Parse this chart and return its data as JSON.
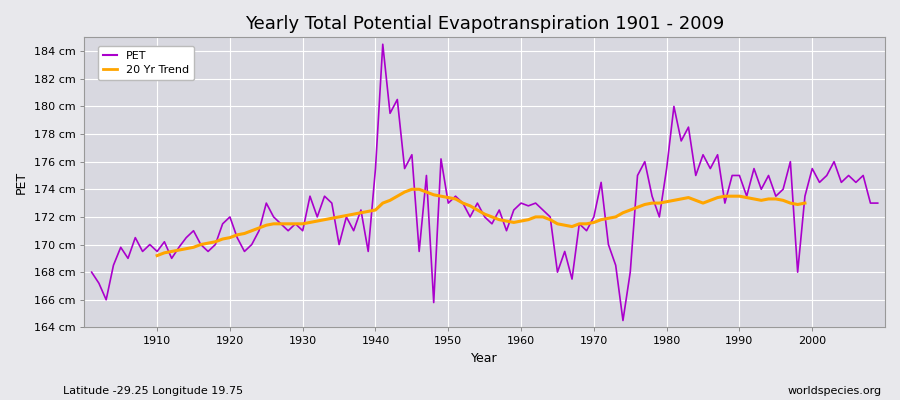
{
  "title": "Yearly Total Potential Evapotranspiration 1901 - 2009",
  "xlabel": "Year",
  "ylabel": "PET",
  "subtitle_left": "Latitude -29.25 Longitude 19.75",
  "subtitle_right": "worldspecies.org",
  "pet_color": "#AA00CC",
  "trend_color": "#FFA500",
  "bg_color": "#E8E8EC",
  "plot_bg_color": "#D8D8E0",
  "grid_color": "#FFFFFF",
  "ylim": [
    164,
    185
  ],
  "ytick_labels": [
    "164 cm",
    "166 cm",
    "168 cm",
    "170 cm",
    "172 cm",
    "174 cm",
    "176 cm",
    "178 cm",
    "180 cm",
    "182 cm",
    "184 cm"
  ],
  "ytick_values": [
    164,
    166,
    168,
    170,
    172,
    174,
    176,
    178,
    180,
    182,
    184
  ],
  "years": [
    1901,
    1902,
    1903,
    1904,
    1905,
    1906,
    1907,
    1908,
    1909,
    1910,
    1911,
    1912,
    1913,
    1914,
    1915,
    1916,
    1917,
    1918,
    1919,
    1920,
    1921,
    1922,
    1923,
    1924,
    1925,
    1926,
    1927,
    1928,
    1929,
    1930,
    1931,
    1932,
    1933,
    1934,
    1935,
    1936,
    1937,
    1938,
    1939,
    1940,
    1941,
    1942,
    1943,
    1944,
    1945,
    1946,
    1947,
    1948,
    1949,
    1950,
    1951,
    1952,
    1953,
    1954,
    1955,
    1956,
    1957,
    1958,
    1959,
    1960,
    1961,
    1962,
    1963,
    1964,
    1965,
    1966,
    1967,
    1968,
    1969,
    1970,
    1971,
    1972,
    1973,
    1974,
    1975,
    1976,
    1977,
    1978,
    1979,
    1980,
    1981,
    1982,
    1983,
    1984,
    1985,
    1986,
    1987,
    1988,
    1989,
    1990,
    1991,
    1992,
    1993,
    1994,
    1995,
    1996,
    1997,
    1998,
    1999,
    2000,
    2001,
    2002,
    2003,
    2004,
    2005,
    2006,
    2007,
    2008,
    2009
  ],
  "pet": [
    168.0,
    167.2,
    166.0,
    168.5,
    169.8,
    169.0,
    170.5,
    169.5,
    170.0,
    169.5,
    170.2,
    169.0,
    169.8,
    170.5,
    171.0,
    170.0,
    169.5,
    170.0,
    171.5,
    172.0,
    170.5,
    169.5,
    170.0,
    171.0,
    173.0,
    172.0,
    171.5,
    171.0,
    171.5,
    171.0,
    173.5,
    172.0,
    173.5,
    173.0,
    170.0,
    172.0,
    171.0,
    172.5,
    169.5,
    175.5,
    184.5,
    179.5,
    180.5,
    175.5,
    176.5,
    169.5,
    175.0,
    165.8,
    176.2,
    173.0,
    173.5,
    173.0,
    172.0,
    173.0,
    172.0,
    171.5,
    172.5,
    171.0,
    172.5,
    173.0,
    172.8,
    173.0,
    172.5,
    172.0,
    168.0,
    169.5,
    167.5,
    171.5,
    171.0,
    172.0,
    174.5,
    170.0,
    168.5,
    164.5,
    168.0,
    175.0,
    176.0,
    173.5,
    172.0,
    175.5,
    180.0,
    177.5,
    178.5,
    175.0,
    176.5,
    175.5,
    176.5,
    173.0,
    175.0,
    175.0,
    173.5,
    175.5,
    174.0,
    175.0,
    173.5,
    174.0,
    176.0,
    168.0,
    173.5,
    175.5,
    174.5,
    175.0,
    176.0,
    174.5,
    175.0,
    174.5,
    175.0,
    173.0,
    173.0
  ],
  "trend": [
    null,
    null,
    null,
    null,
    null,
    null,
    null,
    null,
    null,
    169.2,
    169.4,
    169.5,
    169.6,
    169.7,
    169.8,
    170.0,
    170.1,
    170.2,
    170.4,
    170.5,
    170.7,
    170.8,
    171.0,
    171.2,
    171.4,
    171.5,
    171.5,
    171.5,
    171.5,
    171.5,
    171.6,
    171.7,
    171.8,
    171.9,
    172.0,
    172.1,
    172.2,
    172.3,
    172.4,
    172.5,
    173.0,
    173.2,
    173.5,
    173.8,
    174.0,
    174.0,
    173.8,
    173.6,
    173.5,
    173.4,
    173.3,
    173.0,
    172.8,
    172.5,
    172.2,
    172.0,
    171.8,
    171.7,
    171.6,
    171.7,
    171.8,
    172.0,
    172.0,
    171.8,
    171.5,
    171.4,
    171.3,
    171.5,
    171.5,
    171.6,
    171.8,
    171.9,
    172.0,
    172.3,
    172.5,
    172.7,
    172.9,
    173.0,
    173.0,
    173.1,
    173.2,
    173.3,
    173.4,
    173.2,
    173.0,
    173.2,
    173.4,
    173.5,
    173.5,
    173.5,
    173.4,
    173.3,
    173.2,
    173.3,
    173.3,
    173.2,
    173.0,
    172.9,
    173.0,
    null,
    null,
    null,
    null,
    null
  ],
  "xticks": [
    1910,
    1920,
    1930,
    1940,
    1950,
    1960,
    1970,
    1980,
    1990,
    2000
  ],
  "xlim_left": 1900,
  "xlim_right": 2010,
  "title_fontsize": 13,
  "axis_label_fontsize": 9,
  "tick_fontsize": 8,
  "subtitle_fontsize": 8,
  "legend_marker_color_pet": "#AA00CC",
  "legend_marker_color_trend": "#FFA500"
}
